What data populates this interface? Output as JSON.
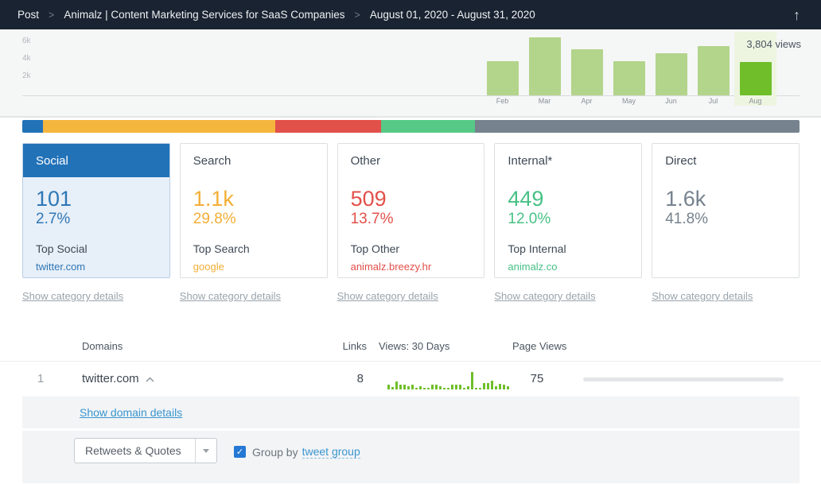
{
  "topbar": {
    "breadcrumb": [
      "Post",
      "Animalz | Content Marketing Services for SaaS Companies",
      "August 01, 2020 - August 31, 2020"
    ],
    "separator": ">",
    "back_to_top_icon": "arrow-up"
  },
  "chart_data": [
    {
      "type": "bar",
      "title": "Monthly page views",
      "categories": [
        "Feb",
        "Mar",
        "Apr",
        "May",
        "Jun",
        "Jul",
        "Aug"
      ],
      "values": [
        3850,
        6600,
        5250,
        3900,
        4800,
        5600,
        3804
      ],
      "yticks": [
        "6k",
        "4k",
        "2k"
      ],
      "ylim": [
        0,
        7500
      ],
      "highlight_index": 6,
      "annotation": "3,804 views",
      "bar_color": "#b3d48b",
      "highlight_color": "#6fbe2a",
      "legend": "off",
      "grid": "off"
    },
    {
      "type": "bar",
      "title": "Referrer category share (%)",
      "categories": [
        "Social",
        "Search",
        "Other",
        "Internal",
        "Direct"
      ],
      "values": [
        2.7,
        29.8,
        13.7,
        12.0,
        41.8
      ],
      "colors": [
        "#2272b8",
        "#f5b63d",
        "#e2504a",
        "#57c986",
        "#76828e"
      ]
    },
    {
      "type": "bar",
      "title": "twitter.com views, last 30 days (sparkline, relative heights)",
      "values": [
        25,
        15,
        45,
        28,
        28,
        20,
        28,
        8,
        20,
        5,
        10,
        28,
        28,
        20,
        8,
        5,
        25,
        25,
        28,
        10,
        18,
        100,
        10,
        5,
        35,
        35,
        48,
        20,
        30,
        28,
        20
      ],
      "color": "#6fbe2a"
    }
  ],
  "cards": [
    {
      "label": "Social",
      "value": "101",
      "percent": "2.7%",
      "top_label": "Top Social",
      "top_value": "twitter.com",
      "color": "#2e77b6",
      "selected": true,
      "details_link": "Show category details"
    },
    {
      "label": "Search",
      "value": "1.1k",
      "percent": "29.8%",
      "top_label": "Top Search",
      "top_value": "google",
      "color": "#f2ae35",
      "selected": false,
      "details_link": "Show category details"
    },
    {
      "label": "Other",
      "value": "509",
      "percent": "13.7%",
      "top_label": "Top Other",
      "top_value": "animalz.breezy.hr",
      "color": "#e2504a",
      "selected": false,
      "details_link": "Show category details"
    },
    {
      "label": "Internal*",
      "value": "449",
      "percent": "12.0%",
      "top_label": "Top Internal",
      "top_value": "animalz.co",
      "color": "#47c185",
      "selected": false,
      "details_link": "Show category details"
    },
    {
      "label": "Direct",
      "value": "1.6k",
      "percent": "41.8%",
      "top_label": "",
      "top_value": "",
      "color": "#76828e",
      "selected": false,
      "details_link": "Show category details"
    }
  ],
  "table": {
    "columns": [
      "Domains",
      "Links",
      "Views: 30 Days",
      "Page Views"
    ],
    "rows": [
      {
        "rank": "1",
        "domain": "twitter.com",
        "expand_icon": "chevron-up",
        "links": "8",
        "page_views": "75",
        "progress_percent": 3
      }
    ],
    "expanded": {
      "domain_details_link": "Show domain details",
      "filter_dropdown_value": "Retweets & Quotes",
      "group_by_label": "Group by",
      "group_by_link": "tweet group",
      "group_by_checked": true
    }
  }
}
